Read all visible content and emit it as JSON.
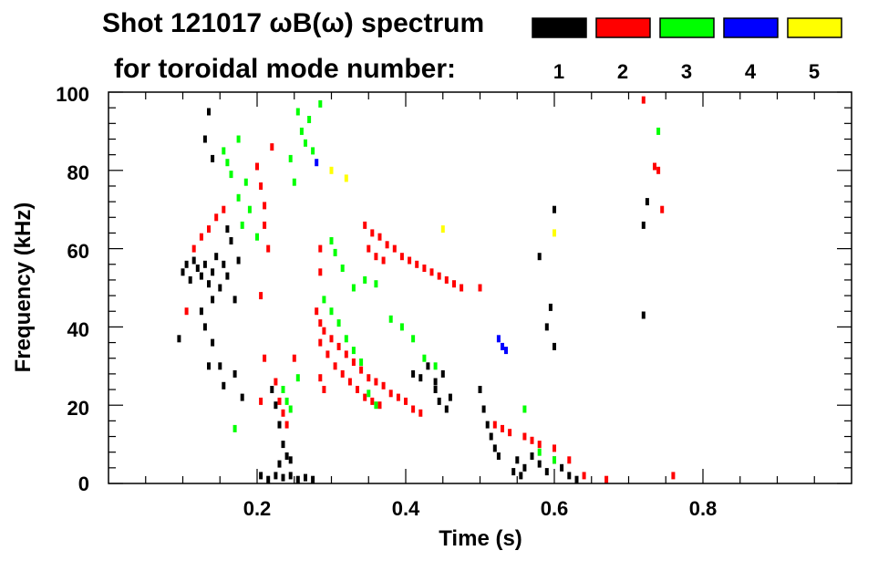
{
  "chart_data": {
    "type": "scatter",
    "title_line1": "Shot 121017 ωB(ω) spectrum",
    "title_line2": "for toroidal mode number:",
    "xlabel": "Time (s)",
    "ylabel": "Frequency (kHz)",
    "xlim": [
      0.0,
      1.0
    ],
    "ylim": [
      0,
      100
    ],
    "x_ticks": [
      0.2,
      0.4,
      0.6,
      0.8
    ],
    "x_tick_labels": [
      "0.2",
      "0.4",
      "0.6",
      "0.8"
    ],
    "y_ticks": [
      0,
      20,
      40,
      60,
      80,
      100
    ],
    "y_tick_labels": [
      "0",
      "20",
      "40",
      "60",
      "80",
      "100"
    ],
    "legend": [
      {
        "label": "1",
        "color": "#000000"
      },
      {
        "label": "2",
        "color": "#ff0000"
      },
      {
        "label": "3",
        "color": "#00ff00"
      },
      {
        "label": "4",
        "color": "#0000ff"
      },
      {
        "label": "5",
        "color": "#ffff00"
      }
    ],
    "series": [
      {
        "mode": 1,
        "color": "#000000",
        "points": [
          [
            0.1,
            54
          ],
          [
            0.105,
            56
          ],
          [
            0.11,
            52
          ],
          [
            0.115,
            57
          ],
          [
            0.12,
            55
          ],
          [
            0.125,
            53
          ],
          [
            0.13,
            56
          ],
          [
            0.135,
            51
          ],
          [
            0.14,
            54
          ],
          [
            0.145,
            58
          ],
          [
            0.15,
            50
          ],
          [
            0.155,
            56
          ],
          [
            0.16,
            53
          ],
          [
            0.125,
            44
          ],
          [
            0.13,
            40
          ],
          [
            0.14,
            36
          ],
          [
            0.15,
            30
          ],
          [
            0.155,
            25
          ],
          [
            0.165,
            62
          ],
          [
            0.17,
            47
          ],
          [
            0.17,
            28
          ],
          [
            0.175,
            57
          ],
          [
            0.18,
            22
          ],
          [
            0.16,
            65
          ],
          [
            0.14,
            47
          ],
          [
            0.135,
            30
          ],
          [
            0.095,
            37
          ],
          [
            0.13,
            88
          ],
          [
            0.135,
            95
          ],
          [
            0.14,
            83
          ],
          [
            0.22,
            24
          ],
          [
            0.225,
            20
          ],
          [
            0.23,
            15
          ],
          [
            0.235,
            10
          ],
          [
            0.24,
            7
          ],
          [
            0.23,
            5
          ],
          [
            0.245,
            6
          ],
          [
            0.205,
            2
          ],
          [
            0.215,
            1
          ],
          [
            0.225,
            2
          ],
          [
            0.235,
            1.5
          ],
          [
            0.245,
            2
          ],
          [
            0.255,
            1
          ],
          [
            0.265,
            1.5
          ],
          [
            0.275,
            1
          ],
          [
            0.41,
            28
          ],
          [
            0.42,
            27
          ],
          [
            0.43,
            30
          ],
          [
            0.44,
            26
          ],
          [
            0.45,
            28
          ],
          [
            0.445,
            21
          ],
          [
            0.44,
            24
          ],
          [
            0.455,
            19
          ],
          [
            0.46,
            22
          ],
          [
            0.5,
            24
          ],
          [
            0.505,
            19
          ],
          [
            0.51,
            15
          ],
          [
            0.515,
            12
          ],
          [
            0.52,
            9
          ],
          [
            0.525,
            7
          ],
          [
            0.55,
            6
          ],
          [
            0.56,
            4
          ],
          [
            0.57,
            7
          ],
          [
            0.58,
            5
          ],
          [
            0.59,
            3
          ],
          [
            0.6,
            6
          ],
          [
            0.61,
            4
          ],
          [
            0.62,
            2
          ],
          [
            0.63,
            1
          ],
          [
            0.545,
            3
          ],
          [
            0.555,
            2
          ],
          [
            0.59,
            40
          ],
          [
            0.595,
            45
          ],
          [
            0.6,
            35
          ],
          [
            0.58,
            58
          ],
          [
            0.6,
            70
          ],
          [
            0.72,
            66
          ],
          [
            0.725,
            72
          ],
          [
            0.72,
            43
          ]
        ]
      },
      {
        "mode": 2,
        "color": "#ff0000",
        "points": [
          [
            0.105,
            44
          ],
          [
            0.115,
            60
          ],
          [
            0.125,
            63
          ],
          [
            0.135,
            65
          ],
          [
            0.145,
            68
          ],
          [
            0.155,
            70
          ],
          [
            0.2,
            81
          ],
          [
            0.205,
            76
          ],
          [
            0.21,
            71
          ],
          [
            0.21,
            66
          ],
          [
            0.215,
            60
          ],
          [
            0.205,
            48
          ],
          [
            0.21,
            32
          ],
          [
            0.205,
            21
          ],
          [
            0.22,
            86
          ],
          [
            0.225,
            26
          ],
          [
            0.23,
            21
          ],
          [
            0.235,
            18
          ],
          [
            0.24,
            15
          ],
          [
            0.25,
            32
          ],
          [
            0.28,
            44
          ],
          [
            0.285,
            41
          ],
          [
            0.29,
            39
          ],
          [
            0.3,
            37
          ],
          [
            0.31,
            35
          ],
          [
            0.32,
            33
          ],
          [
            0.33,
            31
          ],
          [
            0.34,
            29
          ],
          [
            0.35,
            27
          ],
          [
            0.36,
            26
          ],
          [
            0.37,
            25
          ],
          [
            0.38,
            23
          ],
          [
            0.39,
            22
          ],
          [
            0.4,
            21
          ],
          [
            0.41,
            19
          ],
          [
            0.42,
            18
          ],
          [
            0.285,
            36
          ],
          [
            0.295,
            33
          ],
          [
            0.305,
            30
          ],
          [
            0.315,
            28
          ],
          [
            0.325,
            26
          ],
          [
            0.335,
            24
          ],
          [
            0.345,
            22
          ],
          [
            0.355,
            21
          ],
          [
            0.365,
            20
          ],
          [
            0.285,
            60
          ],
          [
            0.285,
            54
          ],
          [
            0.285,
            27
          ],
          [
            0.29,
            24
          ],
          [
            0.345,
            66
          ],
          [
            0.355,
            64
          ],
          [
            0.365,
            63
          ],
          [
            0.375,
            61
          ],
          [
            0.385,
            60
          ],
          [
            0.395,
            58
          ],
          [
            0.405,
            57
          ],
          [
            0.415,
            56
          ],
          [
            0.425,
            55
          ],
          [
            0.435,
            54
          ],
          [
            0.445,
            53
          ],
          [
            0.455,
            52
          ],
          [
            0.465,
            51
          ],
          [
            0.475,
            50
          ],
          [
            0.35,
            60
          ],
          [
            0.36,
            58
          ],
          [
            0.37,
            57
          ],
          [
            0.5,
            50
          ],
          [
            0.52,
            15
          ],
          [
            0.53,
            14
          ],
          [
            0.54,
            13
          ],
          [
            0.56,
            12
          ],
          [
            0.57,
            11
          ],
          [
            0.58,
            10
          ],
          [
            0.6,
            9
          ],
          [
            0.62,
            6
          ],
          [
            0.64,
            2
          ],
          [
            0.67,
            1
          ],
          [
            0.72,
            98
          ],
          [
            0.735,
            81
          ],
          [
            0.74,
            80
          ],
          [
            0.745,
            70
          ],
          [
            0.76,
            2
          ]
        ]
      },
      {
        "mode": 3,
        "color": "#00ff00",
        "points": [
          [
            0.155,
            85
          ],
          [
            0.16,
            82
          ],
          [
            0.165,
            79
          ],
          [
            0.175,
            73
          ],
          [
            0.18,
            66
          ],
          [
            0.175,
            88
          ],
          [
            0.185,
            77
          ],
          [
            0.19,
            70
          ],
          [
            0.2,
            63
          ],
          [
            0.17,
            14
          ],
          [
            0.235,
            24
          ],
          [
            0.24,
            21
          ],
          [
            0.245,
            19
          ],
          [
            0.255,
            27
          ],
          [
            0.255,
            95
          ],
          [
            0.26,
            90
          ],
          [
            0.265,
            87
          ],
          [
            0.27,
            93
          ],
          [
            0.275,
            85
          ],
          [
            0.285,
            97
          ],
          [
            0.245,
            83
          ],
          [
            0.25,
            77
          ],
          [
            0.29,
            47
          ],
          [
            0.3,
            44
          ],
          [
            0.31,
            41
          ],
          [
            0.32,
            37
          ],
          [
            0.33,
            34
          ],
          [
            0.34,
            31
          ],
          [
            0.33,
            50
          ],
          [
            0.345,
            52
          ],
          [
            0.36,
            51
          ],
          [
            0.315,
            55
          ],
          [
            0.305,
            59
          ],
          [
            0.3,
            62
          ],
          [
            0.38,
            42
          ],
          [
            0.395,
            40
          ],
          [
            0.41,
            37
          ],
          [
            0.425,
            32
          ],
          [
            0.44,
            30
          ],
          [
            0.35,
            23
          ],
          [
            0.36,
            20
          ],
          [
            0.56,
            19
          ],
          [
            0.58,
            8
          ],
          [
            0.6,
            6
          ],
          [
            0.74,
            90
          ]
        ]
      },
      {
        "mode": 4,
        "color": "#0000ff",
        "points": [
          [
            0.28,
            82
          ],
          [
            0.53,
            35
          ],
          [
            0.535,
            34
          ],
          [
            0.525,
            37
          ]
        ]
      },
      {
        "mode": 5,
        "color": "#ffff00",
        "points": [
          [
            0.3,
            80
          ],
          [
            0.32,
            78
          ],
          [
            0.45,
            65
          ],
          [
            0.6,
            64
          ]
        ]
      }
    ]
  }
}
